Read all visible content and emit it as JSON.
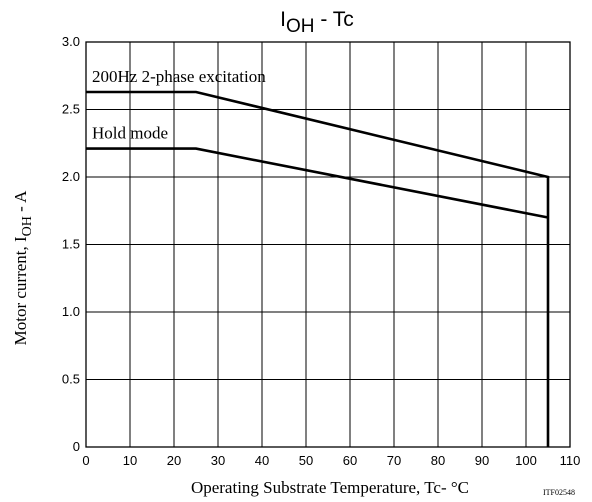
{
  "chart_data": {
    "type": "line",
    "title": {
      "main": "I",
      "sub": "OH",
      "rest": " - Tc"
    },
    "xlabel": "Operating Substrate Temperature, Tc- °C",
    "ylabel": {
      "main": "Motor current, I",
      "sub": "OH",
      "rest": " - A"
    },
    "xlim": [
      0,
      110
    ],
    "ylim": [
      0,
      3.0
    ],
    "x_ticks": [
      0,
      10,
      20,
      30,
      40,
      50,
      60,
      70,
      80,
      90,
      100,
      110
    ],
    "y_ticks": [
      "0",
      "0.5",
      "1.0",
      "1.5",
      "2.0",
      "2.5",
      "3.0"
    ],
    "y_tick_values": [
      0,
      0.5,
      1.0,
      1.5,
      2.0,
      2.5,
      3.0
    ],
    "grid": true,
    "series": [
      {
        "name": "200Hz 2-phase excitation",
        "x": [
          0,
          25,
          105,
          105
        ],
        "y": [
          2.63,
          2.63,
          2.0,
          0
        ]
      },
      {
        "name": "Hold mode",
        "x": [
          0,
          25,
          105
        ],
        "y": [
          2.21,
          2.21,
          1.7
        ]
      }
    ],
    "annotations": [
      "ITF02548"
    ]
  }
}
